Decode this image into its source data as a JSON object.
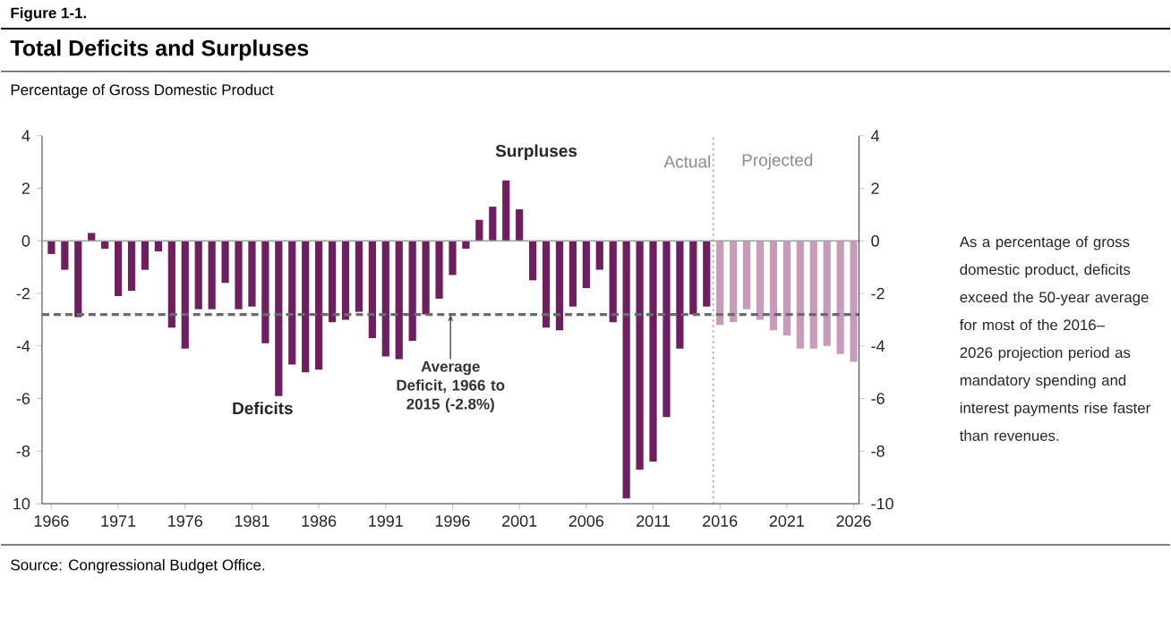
{
  "chart_data": {
    "type": "bar",
    "title": "Total Deficits and Surpluses",
    "ylabel": "Percentage of Gross Domestic Product",
    "x": [
      1966,
      1967,
      1968,
      1969,
      1970,
      1971,
      1972,
      1973,
      1974,
      1975,
      1976,
      1977,
      1978,
      1979,
      1980,
      1981,
      1982,
      1983,
      1984,
      1985,
      1986,
      1987,
      1988,
      1989,
      1990,
      1991,
      1992,
      1993,
      1994,
      1995,
      1996,
      1997,
      1998,
      1999,
      2000,
      2001,
      2002,
      2003,
      2004,
      2005,
      2006,
      2007,
      2008,
      2009,
      2010,
      2011,
      2012,
      2013,
      2014,
      2015,
      2016,
      2017,
      2018,
      2019,
      2020,
      2021,
      2022,
      2023,
      2024,
      2025,
      2026
    ],
    "values": [
      -0.5,
      -1.1,
      -2.9,
      0.3,
      -0.3,
      -2.1,
      -1.9,
      -1.1,
      -0.4,
      -3.3,
      -4.1,
      -2.6,
      -2.6,
      -1.6,
      -2.6,
      -2.5,
      -3.9,
      -5.9,
      -4.7,
      -5.0,
      -4.9,
      -3.1,
      -3.0,
      -2.7,
      -3.7,
      -4.4,
      -4.5,
      -3.8,
      -2.8,
      -2.2,
      -1.3,
      -0.3,
      0.8,
      1.3,
      2.3,
      1.2,
      -1.5,
      -3.3,
      -3.4,
      -2.5,
      -1.8,
      -1.1,
      -3.1,
      -9.8,
      -8.7,
      -8.4,
      -6.7,
      -4.1,
      -2.8,
      -2.5,
      -3.2,
      -3.1,
      -2.6,
      -3.0,
      -3.4,
      -3.6,
      -4.1,
      -4.1,
      -4.0,
      -4.3,
      -4.6
    ],
    "colors": [
      "#6e1f5f",
      "#6e1f5f",
      "#6e1f5f",
      "#6e1f5f",
      "#6e1f5f",
      "#6e1f5f",
      "#6e1f5f",
      "#6e1f5f",
      "#6e1f5f",
      "#6e1f5f",
      "#6e1f5f",
      "#6e1f5f",
      "#6e1f5f",
      "#6e1f5f",
      "#6e1f5f",
      "#6e1f5f",
      "#6e1f5f",
      "#6e1f5f",
      "#6e1f5f",
      "#6e1f5f",
      "#6e1f5f",
      "#6e1f5f",
      "#6e1f5f",
      "#6e1f5f",
      "#6e1f5f",
      "#6e1f5f",
      "#6e1f5f",
      "#6e1f5f",
      "#6e1f5f",
      "#6e1f5f",
      "#6e1f5f",
      "#6e1f5f",
      "#6e1f5f",
      "#6e1f5f",
      "#6e1f5f",
      "#6e1f5f",
      "#6e1f5f",
      "#6e1f5f",
      "#6e1f5f",
      "#6e1f5f",
      "#6e1f5f",
      "#6e1f5f",
      "#6e1f5f",
      "#6e1f5f",
      "#6e1f5f",
      "#6e1f5f",
      "#6e1f5f",
      "#6e1f5f",
      "#6e1f5f",
      "#6e1f5f",
      "#c99bba",
      "#c99bba",
      "#c99bba",
      "#c99bba",
      "#c99bba",
      "#c99bba",
      "#c99bba",
      "#c99bba",
      "#c99bba",
      "#c99bba",
      "#c99bba"
    ],
    "xlim": [
      1965.3,
      2026.4
    ],
    "xticks": [
      1966,
      1971,
      1976,
      1981,
      1986,
      1991,
      1996,
      2001,
      2006,
      2011,
      2016,
      2021,
      2026
    ],
    "ylim": [
      -10,
      4
    ],
    "yticks": [
      4,
      2,
      0,
      -2,
      -4,
      -6,
      -8,
      {
        "value": -10,
        "label": "10"
      }
    ],
    "y2lim": [
      -10,
      4
    ],
    "y2ticks": [
      4,
      2,
      0,
      -2,
      -4,
      -6,
      -8,
      -10
    ],
    "ref_lines": [
      {
        "axis": "y",
        "value": -2.8,
        "label": "Average Deficit, 1966 to 2015 (-2.8%)",
        "color": "#6b6b6b",
        "line_style": "dashed"
      },
      {
        "axis": "x",
        "value": 2015.5,
        "color": "#9a9a9a",
        "line_style": "dotted"
      },
      {
        "axis": "y",
        "value": 0,
        "color": "#a0a0a0",
        "line_style": "solid"
      }
    ],
    "annotations": [
      "Figure 1-1.",
      "Surpluses",
      "Deficits",
      "Actual",
      "Projected",
      "As a percentage of gross domestic product, deficits exceed the 50-year average for most of the 2016–2026 projection period as mandatory spending and interest payments rise faster than revenues.",
      "Source: Congressional Budget Office."
    ]
  }
}
